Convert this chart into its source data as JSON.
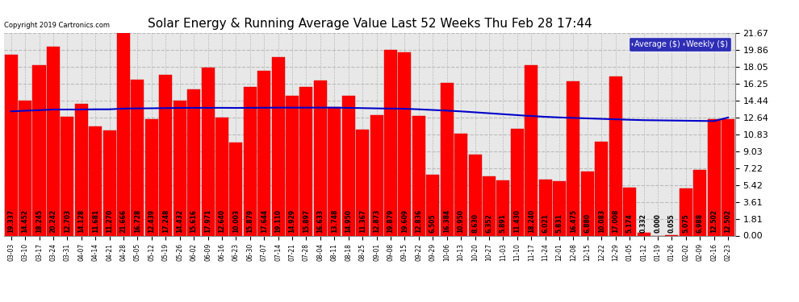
{
  "title": "Solar Energy & Running Average Value Last 52 Weeks Thu Feb 28 17:44",
  "copyright": "Copyright 2019 Cartronics.com",
  "bar_color": "#ff0000",
  "avg_line_color": "#0000cc",
  "background_color": "#ffffff",
  "plot_bg_color": "#e8e8e8",
  "grid_color": "#bbbbbb",
  "categories": [
    "03-03",
    "03-10",
    "03-17",
    "03-24",
    "03-31",
    "04-07",
    "04-14",
    "04-21",
    "04-28",
    "05-05",
    "05-12",
    "05-19",
    "05-26",
    "06-02",
    "06-09",
    "06-16",
    "06-23",
    "06-30",
    "07-07",
    "07-14",
    "07-21",
    "07-28",
    "08-04",
    "08-11",
    "08-18",
    "08-25",
    "09-01",
    "09-08",
    "09-15",
    "09-22",
    "09-29",
    "10-06",
    "10-13",
    "10-20",
    "10-27",
    "11-03",
    "11-10",
    "11-17",
    "11-24",
    "12-01",
    "12-08",
    "12-15",
    "12-22",
    "12-29",
    "01-05",
    "01-12",
    "01-19",
    "01-26",
    "02-02",
    "02-09",
    "02-16",
    "02-23"
  ],
  "weekly_values": [
    19.337,
    14.452,
    18.245,
    20.242,
    12.703,
    14.128,
    11.681,
    11.27,
    21.666,
    16.728,
    12.439,
    17.248,
    14.432,
    15.616,
    17.971,
    12.64,
    10.003,
    15.879,
    17.644,
    19.11,
    14.929,
    15.897,
    16.633,
    13.748,
    14.95,
    11.367,
    12.873,
    19.879,
    19.609,
    12.836,
    6.505,
    16.384,
    10.95,
    8.63,
    6.352,
    5.891,
    11.43,
    18.24,
    6.021,
    5.831,
    16.475,
    6.88,
    10.083,
    17.008,
    5.174,
    0.332,
    0.0,
    0.055,
    5.075,
    6.988,
    12.502,
    12.502
  ],
  "avg_values": [
    13.3,
    13.37,
    13.43,
    13.5,
    13.5,
    13.5,
    13.52,
    13.52,
    13.6,
    13.62,
    13.63,
    13.65,
    13.67,
    13.68,
    13.68,
    13.68,
    13.67,
    13.68,
    13.69,
    13.7,
    13.7,
    13.7,
    13.7,
    13.7,
    13.68,
    13.65,
    13.62,
    13.6,
    13.58,
    13.52,
    13.45,
    13.38,
    13.3,
    13.2,
    13.1,
    13.0,
    12.9,
    12.8,
    12.72,
    12.65,
    12.6,
    12.55,
    12.5,
    12.45,
    12.4,
    12.36,
    12.34,
    12.32,
    12.3,
    12.28,
    12.26,
    12.64
  ],
  "ylim": [
    0.0,
    21.67
  ],
  "yticks": [
    0.0,
    1.81,
    3.61,
    5.42,
    7.22,
    9.03,
    10.83,
    12.64,
    14.44,
    16.25,
    18.05,
    19.86,
    21.67
  ],
  "legend_avg_label": "Average ($)",
  "legend_weekly_label": "Weekly ($)",
  "title_fontsize": 11,
  "bar_width": 0.92,
  "label_fontsize": 5.5,
  "xtick_fontsize": 5.5,
  "ytick_fontsize": 8
}
